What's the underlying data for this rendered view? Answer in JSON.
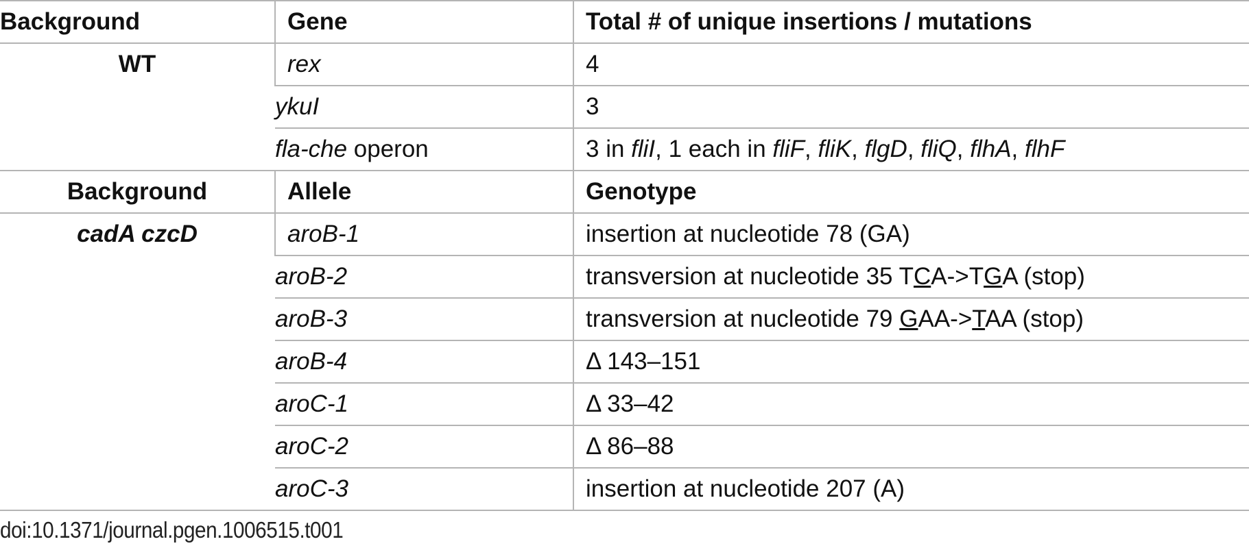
{
  "wt_section": {
    "headers": {
      "background": "Background",
      "gene": "Gene",
      "total": "Total # of unique insertions / mutations"
    },
    "background": "WT",
    "rows": [
      {
        "gene": "rex",
        "count": "4"
      },
      {
        "gene": "ykuI",
        "count": "3"
      },
      {
        "gene_italic": "fla-che",
        "gene_plain": " operon",
        "count_parts": {
          "a": "3 in ",
          "b": "fliI",
          "c": ", 1 each in ",
          "d": "fliF",
          "e": ", ",
          "f": "fliK",
          "g": ", ",
          "h": "flgD",
          "i": ", ",
          "j": "fliQ",
          "k": ", ",
          "l": "flhA",
          "m": ", ",
          "n": "flhF"
        }
      }
    ]
  },
  "mutant_section": {
    "headers": {
      "background": "Background",
      "allele": "Allele",
      "genotype": "Genotype"
    },
    "background": "cadA czcD",
    "rows": [
      {
        "allele": "aroB-1",
        "genotype": "insertion at nucleotide 78 (GA)"
      },
      {
        "allele": "aroB-2",
        "genotype_parts": {
          "a": "transversion at nucleotide 35 T",
          "b": "C",
          "c": "A->T",
          "d": "G",
          "e": "A (stop)"
        }
      },
      {
        "allele": "aroB-3",
        "genotype_parts": {
          "a": "transversion at nucleotide 79 ",
          "b": "G",
          "c": "AA->",
          "d": "T",
          "e": "AA (stop)"
        }
      },
      {
        "allele": "aroB-4",
        "genotype": "Δ 143–151"
      },
      {
        "allele": "aroC-1",
        "genotype": "Δ 33–42"
      },
      {
        "allele": "aroC-2",
        "genotype": "Δ 86–88"
      },
      {
        "allele": "aroC-3",
        "genotype": "insertion at nucleotide 207 (A)"
      }
    ]
  },
  "footer": {
    "doi": "doi:10.1371/journal.pgen.1006515.t001"
  }
}
